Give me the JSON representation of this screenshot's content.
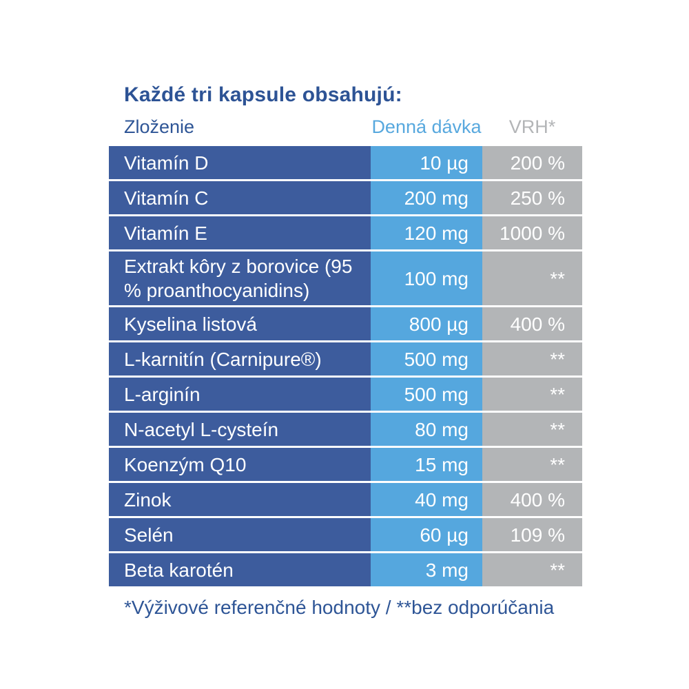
{
  "panel": {
    "title": "Každé tri kapsule obsahujú:",
    "columns": {
      "ingredient": "Zloženie",
      "dose": "Denná dávka",
      "vrh": "VRH*"
    },
    "rows": [
      {
        "name": "Vitamín D",
        "dose": "10 µg",
        "vrh": "200 %"
      },
      {
        "name": "Vitamín C",
        "dose": "200 mg",
        "vrh": "250 %"
      },
      {
        "name": "Vitamín E",
        "dose": "120 mg",
        "vrh": "1000 %"
      },
      {
        "name": "Extrakt kôry z borovice (95 % proanthocyanidins)",
        "dose": "100 mg",
        "vrh": "**"
      },
      {
        "name": "Kyselina listová",
        "dose": "800 µg",
        "vrh": "400 %"
      },
      {
        "name": "L-karnitín (Carnipure®)",
        "dose": "500 mg",
        "vrh": "**"
      },
      {
        "name": "L-arginín",
        "dose": "500 mg",
        "vrh": "**"
      },
      {
        "name": "N-acetyl L-cysteín",
        "dose": "80 mg",
        "vrh": "**"
      },
      {
        "name": "Koenzým Q10",
        "dose": "15 mg",
        "vrh": "**"
      },
      {
        "name": "Zinok",
        "dose": "40 mg",
        "vrh": "400 %"
      },
      {
        "name": "Selén",
        "dose": "60 µg",
        "vrh": "109 %"
      },
      {
        "name": "Beta karotén",
        "dose": "3 mg",
        "vrh": "**"
      }
    ],
    "footnote": "*Výživové referenčné hodnoty / **bez odporúčania",
    "colors": {
      "ingredient_column": "#3d5c9d",
      "dose_column": "#55a7de",
      "vrh_column": "#b3b5b7",
      "heading_text": "#2d5395",
      "cell_text": "#ffffff"
    }
  }
}
